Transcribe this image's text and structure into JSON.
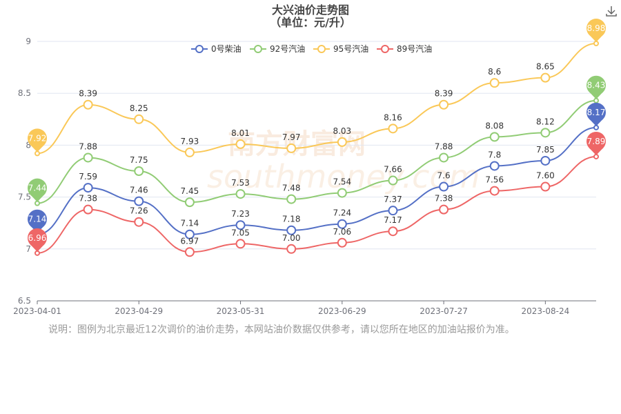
{
  "chart_data": {
    "type": "line",
    "title": "大兴油价走势图",
    "subtitle": "（单位：元/升）",
    "xlabel": "",
    "ylabel": "",
    "ylim": [
      6.5,
      9
    ],
    "yticks": [
      "6.5",
      "7",
      "7.5",
      "8",
      "8.5",
      "9"
    ],
    "x": [
      "2023-04-01",
      "2023-04-15",
      "2023-04-29",
      "2023-05-15",
      "2023-05-31",
      "2023-06-14",
      "2023-06-29",
      "2023-07-13",
      "2023-07-27",
      "2023-08-10",
      "2023-08-24",
      "2023-09-07"
    ],
    "xtick_labels": [
      "2023-04-01",
      "2023-04-29",
      "2023-05-31",
      "2023-06-29",
      "2023-07-27",
      "2023-08-24"
    ],
    "grid": true,
    "legend_position": "top-center",
    "series": [
      {
        "name": "0号柴油",
        "color": "#5470c6",
        "values": [
          7.14,
          7.59,
          7.46,
          7.14,
          7.23,
          7.18,
          7.24,
          7.37,
          7.6,
          7.8,
          7.85,
          8.17
        ],
        "labels": [
          "",
          "7.59",
          "7.46",
          "7.14",
          "7.23",
          "7.18",
          "7.24",
          "7.37",
          "7.6",
          "7.8",
          "7.85",
          ""
        ],
        "pin_label": "7.14",
        "pin_end_label": "8.17"
      },
      {
        "name": "92号汽油",
        "color": "#91cc75",
        "values": [
          7.44,
          7.88,
          7.75,
          7.45,
          7.53,
          7.48,
          7.54,
          7.66,
          7.88,
          8.08,
          8.12,
          8.43
        ],
        "labels": [
          "",
          "7.88",
          "7.75",
          "7.45",
          "7.53",
          "7.48",
          "7.54",
          "7.66",
          "7.88",
          "8.08",
          "8.12",
          ""
        ],
        "pin_label": "7.44",
        "pin_end_label": "8.43"
      },
      {
        "name": "95号汽油",
        "color": "#fac858",
        "values": [
          7.92,
          8.39,
          8.25,
          7.93,
          8.01,
          7.97,
          8.03,
          8.16,
          8.39,
          8.6,
          8.65,
          8.98
        ],
        "labels": [
          "",
          "8.39",
          "8.25",
          "7.93",
          "8.01",
          "7.97",
          "8.03",
          "8.16",
          "8.39",
          "8.6",
          "8.65",
          ""
        ],
        "pin_label": "7.92",
        "pin_end_label": "8.98"
      },
      {
        "name": "89号汽油",
        "color": "#ee6666",
        "values": [
          6.96,
          7.38,
          7.26,
          6.97,
          7.05,
          7.0,
          7.06,
          7.17,
          7.38,
          7.56,
          7.6,
          7.89
        ],
        "labels": [
          "",
          "7.38",
          "7.26",
          "6.97",
          "7.05",
          "7.00",
          "7.06",
          "7.17",
          "7.38",
          "7.56",
          "7.60",
          ""
        ],
        "pin_label": "6.96",
        "pin_end_label": "7.89"
      }
    ],
    "watermark": "南方财富网",
    "watermark_sub": "southmoney.com"
  },
  "note": "说明：图例为北京最近12次调价的油价走势，本网站油价数据仅供参考，请以您所在地区的加油站报价为准。",
  "icons": {
    "download": "download-icon"
  }
}
